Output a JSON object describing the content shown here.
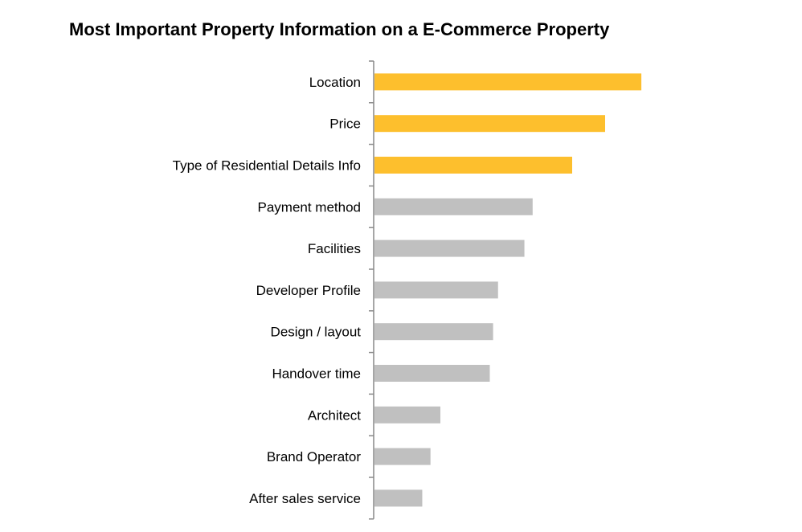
{
  "chart_data": {
    "type": "bar",
    "orientation": "horizontal",
    "title": "Most Important Property Information on a E-Commerce Property",
    "xlabel": "",
    "ylabel": "",
    "xlim": [
      0,
      100
    ],
    "grid": false,
    "categories": [
      "Location",
      "Price",
      "Type of Residential Details Info",
      "Payment method",
      "Facilities",
      "Developer Profile",
      "Design / layout",
      "Handover time",
      "Architect",
      "Brand Operator",
      "After sales service"
    ],
    "values": [
      81,
      70,
      60,
      48,
      45.5,
      37.5,
      36,
      35,
      20,
      17,
      14.5
    ],
    "highlighted": [
      true,
      true,
      true,
      false,
      false,
      false,
      false,
      false,
      false,
      false,
      false
    ]
  },
  "colors": {
    "highlight": "#FDBF2D",
    "normal": "#C0C0C0",
    "axis": "#888888"
  }
}
